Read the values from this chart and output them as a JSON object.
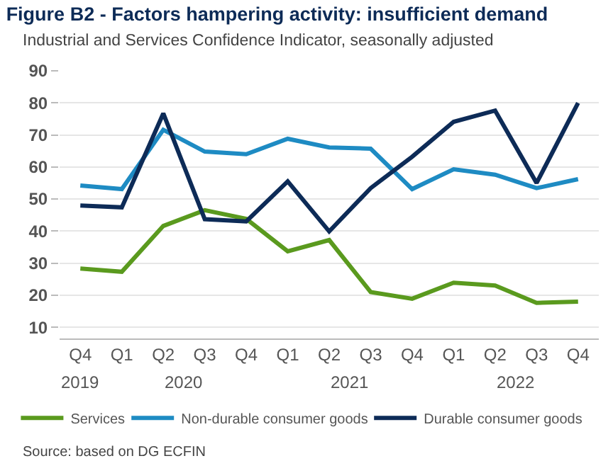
{
  "chart_data": {
    "type": "line",
    "title": "Figure B2 - Factors hampering activity: insufficient demand",
    "subtitle": "Industrial and Services Confidence Indicator, seasonally adjusted",
    "categories": [
      "Q4",
      "Q1",
      "Q2",
      "Q3",
      "Q4",
      "Q1",
      "Q2",
      "Q3",
      "Q4",
      "Q1",
      "Q2",
      "Q3",
      "Q4"
    ],
    "annotations": [
      "2019",
      "2020",
      "2021",
      "2022",
      "Source: based on DG ECFIN"
    ],
    "series": [
      {
        "name": "Services",
        "color": "#5a9a1e",
        "values": [
          28.3,
          27.3,
          41.6,
          46.5,
          43.8,
          33.7,
          37.2,
          21.0,
          18.9,
          23.9,
          23.0,
          17.6,
          18.0
        ]
      },
      {
        "name": "Non-durable consumer goods",
        "color": "#1e8bc3",
        "values": [
          54.2,
          53.1,
          71.6,
          64.8,
          64.0,
          68.8,
          66.1,
          65.7,
          53.1,
          59.3,
          57.6,
          53.4,
          56.2
        ]
      },
      {
        "name": "Durable consumer goods",
        "color": "#0d2b57",
        "values": [
          48.0,
          47.4,
          76.7,
          43.7,
          43.0,
          55.5,
          39.9,
          53.4,
          63.2,
          74.1,
          77.6,
          55.0,
          80.0
        ]
      }
    ],
    "ylim": [
      6.5,
      90
    ],
    "yticks": [
      10,
      20,
      30,
      40,
      50,
      60,
      70,
      80,
      90
    ],
    "grid": "y",
    "legend": "bottom",
    "marker": "none",
    "line_style": "solid"
  }
}
